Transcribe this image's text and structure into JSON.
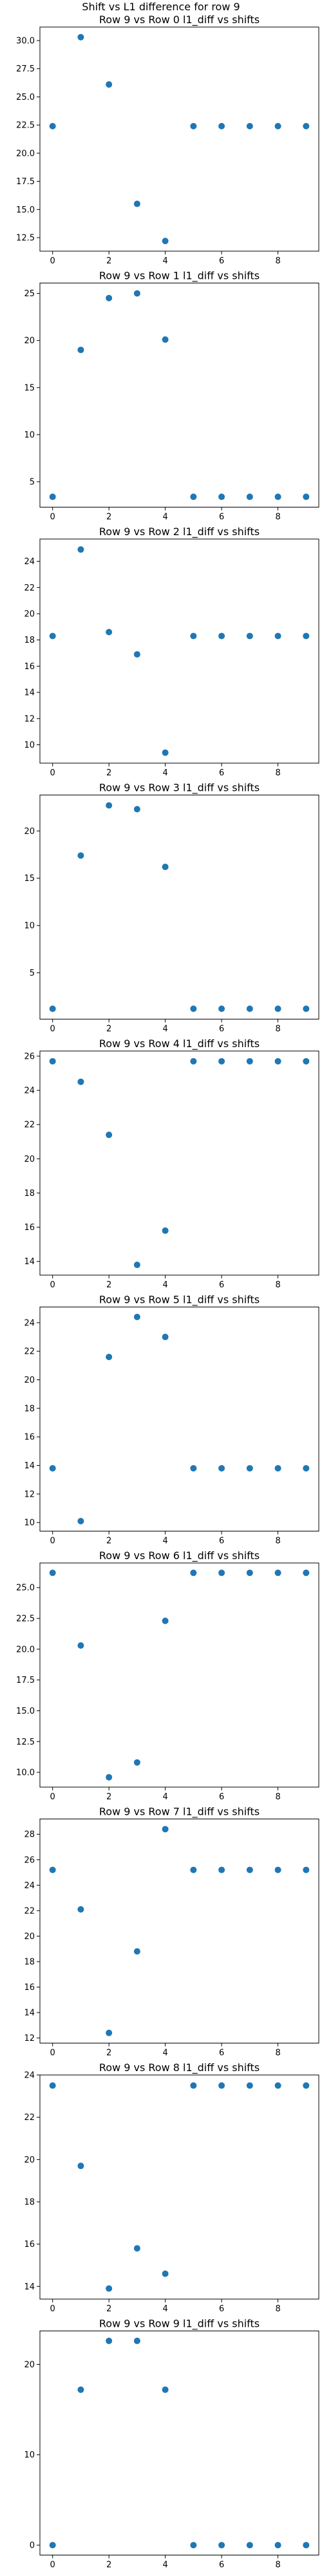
{
  "figure_title": "Shift vs L1 difference for row 9",
  "marker_color": "#1f77b4",
  "chart_data": [
    {
      "type": "scatter",
      "title": "Row 9 vs Row 0 l1_diff vs shifts",
      "x": [
        0,
        1,
        2,
        3,
        4,
        5,
        6,
        7,
        8,
        9
      ],
      "y": [
        22.4,
        30.3,
        26.1,
        15.5,
        12.2,
        22.4,
        22.4,
        22.4,
        22.4,
        22.4
      ],
      "xlim": [
        -0.45,
        9.45
      ],
      "ylim": [
        11.3,
        31.2
      ],
      "xticks": [
        0,
        2,
        4,
        6,
        8
      ],
      "yticks": [
        12.5,
        15.0,
        17.5,
        20.0,
        22.5,
        25.0,
        27.5,
        30.0
      ],
      "ytick_labels": [
        "12.5",
        "15.0",
        "17.5",
        "20.0",
        "22.5",
        "25.0",
        "27.5",
        "30.0"
      ]
    },
    {
      "type": "scatter",
      "title": "Row 9 vs Row 1 l1_diff vs shifts",
      "x": [
        0,
        1,
        2,
        3,
        4,
        5,
        6,
        7,
        8,
        9
      ],
      "y": [
        3.4,
        19.0,
        24.5,
        25.0,
        20.1,
        3.4,
        3.4,
        3.4,
        3.4,
        3.4
      ],
      "xlim": [
        -0.45,
        9.45
      ],
      "ylim": [
        2.3,
        26.1
      ],
      "xticks": [
        0,
        2,
        4,
        6,
        8
      ],
      "yticks": [
        5,
        10,
        15,
        20,
        25
      ],
      "ytick_labels": [
        "5",
        "10",
        "15",
        "20",
        "25"
      ]
    },
    {
      "type": "scatter",
      "title": "Row 9 vs Row 2 l1_diff vs shifts",
      "x": [
        0,
        1,
        2,
        3,
        4,
        5,
        6,
        7,
        8,
        9
      ],
      "y": [
        18.3,
        24.9,
        18.6,
        16.9,
        9.4,
        18.3,
        18.3,
        18.3,
        18.3,
        18.3
      ],
      "xlim": [
        -0.45,
        9.45
      ],
      "ylim": [
        8.6,
        25.7
      ],
      "xticks": [
        0,
        2,
        4,
        6,
        8
      ],
      "yticks": [
        10,
        12,
        14,
        16,
        18,
        20,
        22,
        24
      ],
      "ytick_labels": [
        "10",
        "12",
        "14",
        "16",
        "18",
        "20",
        "22",
        "24"
      ]
    },
    {
      "type": "scatter",
      "title": "Row 9 vs Row 3 l1_diff vs shifts",
      "x": [
        0,
        1,
        2,
        3,
        4,
        5,
        6,
        7,
        8,
        9
      ],
      "y": [
        1.2,
        17.4,
        22.7,
        22.3,
        16.2,
        1.2,
        1.2,
        1.2,
        1.2,
        1.2
      ],
      "xlim": [
        -0.45,
        9.45
      ],
      "ylim": [
        0.1,
        23.8
      ],
      "xticks": [
        0,
        2,
        4,
        6,
        8
      ],
      "yticks": [
        5,
        10,
        15,
        20
      ],
      "ytick_labels": [
        "5",
        "10",
        "15",
        "20"
      ]
    },
    {
      "type": "scatter",
      "title": "Row 9 vs Row 4 l1_diff vs shifts",
      "x": [
        0,
        1,
        2,
        3,
        4,
        5,
        6,
        7,
        8,
        9
      ],
      "y": [
        25.7,
        24.5,
        21.4,
        13.8,
        15.8,
        25.7,
        25.7,
        25.7,
        25.7,
        25.7
      ],
      "xlim": [
        -0.45,
        9.45
      ],
      "ylim": [
        13.2,
        26.3
      ],
      "xticks": [
        0,
        2,
        4,
        6,
        8
      ],
      "yticks": [
        14,
        16,
        18,
        20,
        22,
        24,
        26
      ],
      "ytick_labels": [
        "14",
        "16",
        "18",
        "20",
        "22",
        "24",
        "26"
      ]
    },
    {
      "type": "scatter",
      "title": "Row 9 vs Row 5 l1_diff vs shifts",
      "x": [
        0,
        1,
        2,
        3,
        4,
        5,
        6,
        7,
        8,
        9
      ],
      "y": [
        13.8,
        10.1,
        21.6,
        24.4,
        23.0,
        13.8,
        13.8,
        13.8,
        13.8,
        13.8
      ],
      "xlim": [
        -0.45,
        9.45
      ],
      "ylim": [
        9.4,
        25.1
      ],
      "xticks": [
        0,
        2,
        4,
        6,
        8
      ],
      "yticks": [
        10,
        12,
        14,
        16,
        18,
        20,
        22,
        24
      ],
      "ytick_labels": [
        "10",
        "12",
        "14",
        "16",
        "18",
        "20",
        "22",
        "24"
      ]
    },
    {
      "type": "scatter",
      "title": "Row 9 vs Row 6 l1_diff vs shifts",
      "x": [
        0,
        1,
        2,
        3,
        4,
        5,
        6,
        7,
        8,
        9
      ],
      "y": [
        26.2,
        20.3,
        9.6,
        10.8,
        22.3,
        26.2,
        26.2,
        26.2,
        26.2,
        26.2
      ],
      "xlim": [
        -0.45,
        9.45
      ],
      "ylim": [
        8.8,
        27.0
      ],
      "xticks": [
        0,
        2,
        4,
        6,
        8
      ],
      "yticks": [
        10.0,
        12.5,
        15.0,
        17.5,
        20.0,
        22.5,
        25.0
      ],
      "ytick_labels": [
        "10.0",
        "12.5",
        "15.0",
        "17.5",
        "20.0",
        "22.5",
        "25.0"
      ]
    },
    {
      "type": "scatter",
      "title": "Row 9 vs Row 7 l1_diff vs shifts",
      "x": [
        0,
        1,
        2,
        3,
        4,
        5,
        6,
        7,
        8,
        9
      ],
      "y": [
        25.2,
        22.1,
        12.4,
        18.8,
        28.4,
        25.2,
        25.2,
        25.2,
        25.2,
        25.2
      ],
      "xlim": [
        -0.45,
        9.45
      ],
      "ylim": [
        11.6,
        29.2
      ],
      "xticks": [
        0,
        2,
        4,
        6,
        8
      ],
      "yticks": [
        12,
        14,
        16,
        18,
        20,
        22,
        24,
        26,
        28
      ],
      "ytick_labels": [
        "12",
        "14",
        "16",
        "18",
        "20",
        "22",
        "24",
        "26",
        "28"
      ]
    },
    {
      "type": "scatter",
      "title": "Row 9 vs Row 8 l1_diff vs shifts",
      "x": [
        0,
        1,
        2,
        3,
        4,
        5,
        6,
        7,
        8,
        9
      ],
      "y": [
        23.5,
        19.7,
        13.9,
        15.8,
        14.6,
        23.5,
        23.5,
        23.5,
        23.5,
        23.5
      ],
      "xlim": [
        -0.45,
        9.45
      ],
      "ylim": [
        13.4,
        24.0
      ],
      "xticks": [
        0,
        2,
        4,
        6,
        8
      ],
      "yticks": [
        14,
        16,
        18,
        20,
        22,
        24
      ],
      "ytick_labels": [
        "14",
        "16",
        "18",
        "20",
        "22",
        "24"
      ]
    },
    {
      "type": "scatter",
      "title": "Row 9 vs Row 9 l1_diff vs shifts",
      "x": [
        0,
        1,
        2,
        3,
        4,
        5,
        6,
        7,
        8,
        9
      ],
      "y": [
        0,
        17.2,
        22.6,
        22.6,
        17.2,
        0,
        0,
        0,
        0,
        0
      ],
      "xlim": [
        -0.45,
        9.45
      ],
      "ylim": [
        -1.1,
        23.7
      ],
      "xticks": [
        0,
        2,
        4,
        6,
        8
      ],
      "yticks": [
        0,
        10,
        20
      ],
      "ytick_labels": [
        "0",
        "10",
        "20"
      ]
    }
  ]
}
